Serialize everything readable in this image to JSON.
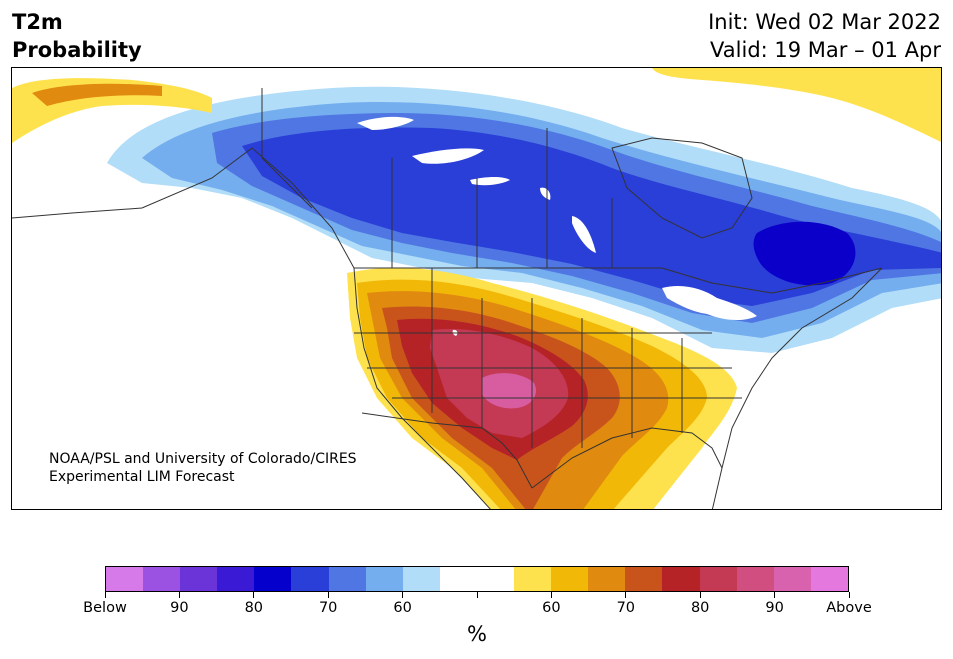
{
  "header": {
    "title_line1": "T2m",
    "title_line2": "Probability",
    "init": "Init: Wed 02 Mar 2022",
    "valid": "Valid: 19 Mar – 01 Apr"
  },
  "map": {
    "credit_line1": "NOAA/PSL and University of Colorado/CIRES",
    "credit_line2": "Experimental LIM Forecast",
    "colors": {
      "below_90": "#b1ddf8",
      "below_80": "#74aeef",
      "below_70": "#4f76e2",
      "below_60": "#2a3ed8",
      "below_50": "#0b00c9",
      "above_60": "#fee24d",
      "above_70": "#f2b807",
      "above_80": "#e08a0f",
      "above_90": "#c8541c",
      "above_95": "#b52327",
      "above_99": "#c43a55",
      "above_top": "#d85da0"
    },
    "lakes_color": "#ffffff",
    "border_color": "#333333"
  },
  "colorbar": {
    "colors": [
      "#d77ae9",
      "#9b52e2",
      "#6b34d8",
      "#3a1ad4",
      "#0600cc",
      "#2a3ed8",
      "#4f76e2",
      "#74aeef",
      "#b1ddf8",
      "#ffffff",
      "#ffffff",
      "#fee24d",
      "#f2b807",
      "#e08a0f",
      "#c8541c",
      "#b52327",
      "#c43a55",
      "#d14f80",
      "#d862ae",
      "#e578df"
    ],
    "labels": [
      "Below",
      "90",
      "80",
      "70",
      "60",
      "60",
      "70",
      "80",
      "90",
      "Above"
    ],
    "unit": "%"
  }
}
